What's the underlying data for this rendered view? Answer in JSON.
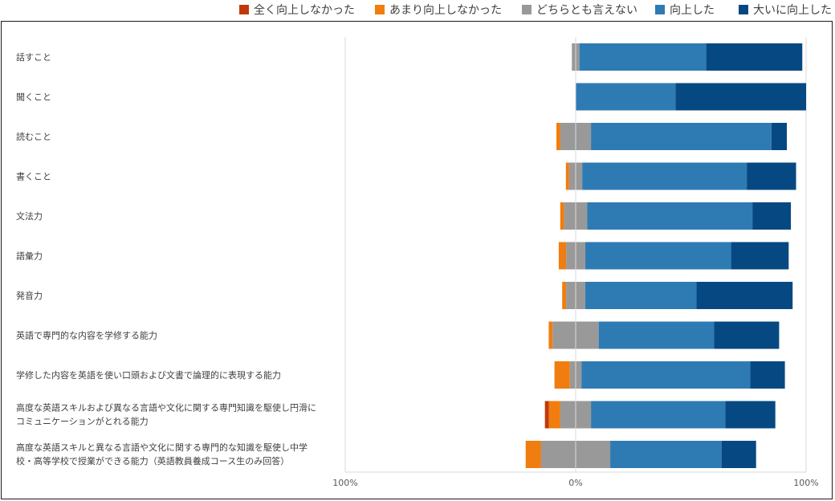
{
  "chart_data": {
    "type": "bar",
    "orientation": "horizontal",
    "stacking": "diverging",
    "xlim": [
      -100,
      100
    ],
    "x_tick_labels": [
      "100%",
      "0%",
      "100%"
    ],
    "grid": false,
    "legend_position": "top",
    "categories": [
      "話すこと",
      "聞くこと",
      "読むこと",
      "書くこと",
      "文法力",
      "語彙力",
      "発音力",
      "英語で専門的な内容を学修する能力",
      "学修した内容を英語を使い口頭および文書で論理的に表現する能力",
      "高度な英語スキルおよび異なる言語や文化に関する専門知識を駆使し円滑にコミュニケーションがとれる能力",
      "高度な英語スキルと異なる言語や文化に関する専門的な知識を駆使し中学校・高等学校で授業ができる能力（英語教員養成コース生のみ回答）"
    ],
    "category_lines": [
      [
        "話すこと"
      ],
      [
        "聞くこと"
      ],
      [
        "読むこと"
      ],
      [
        "書くこと"
      ],
      [
        "文法力"
      ],
      [
        "語彙力"
      ],
      [
        "発音力"
      ],
      [
        "英語で専門的な内容を学修する能力"
      ],
      [
        "学修した内容を英語を使い口頭および文書で論理的に表現する能力"
      ],
      [
        "高度な英語スキルおよび異なる言語や文化に関する専門知識を駆使し円滑に",
        "コミュニケーションがとれる能力"
      ],
      [
        "高度な英語スキルと異なる言語や文化に関する専門的な知識を駆使し中学",
        "校・高等学校で授業ができる能力（英語教員養成コース生のみ回答）"
      ]
    ],
    "series": [
      {
        "name": "全く向上しなかった",
        "color": "#c0390b",
        "values": [
          0,
          0,
          0,
          0,
          0,
          0,
          0,
          0,
          0,
          1.7,
          0
        ]
      },
      {
        "name": "あまり向上しなかった",
        "color": "#f07d0f",
        "values": [
          0,
          0,
          1.7,
          1.4,
          1.7,
          3.2,
          1.7,
          1.7,
          6.7,
          5.0,
          6.7
        ]
      },
      {
        "name": "どちらとも言えない",
        "color": "#999999",
        "values": [
          3.3,
          0,
          13.3,
          5.7,
          10.0,
          8.3,
          8.3,
          20.0,
          5.0,
          13.3,
          30.0
        ]
      },
      {
        "name": "向上した",
        "color": "#2e7bb4",
        "values": [
          55.0,
          43.3,
          78.3,
          71.4,
          71.7,
          63.3,
          48.3,
          50.0,
          73.3,
          58.3,
          48.3
        ]
      },
      {
        "name": "大いに向上した",
        "color": "#064982",
        "values": [
          41.7,
          56.7,
          6.7,
          21.4,
          16.7,
          25.0,
          41.7,
          28.3,
          15.0,
          21.7,
          15.0
        ]
      }
    ]
  }
}
